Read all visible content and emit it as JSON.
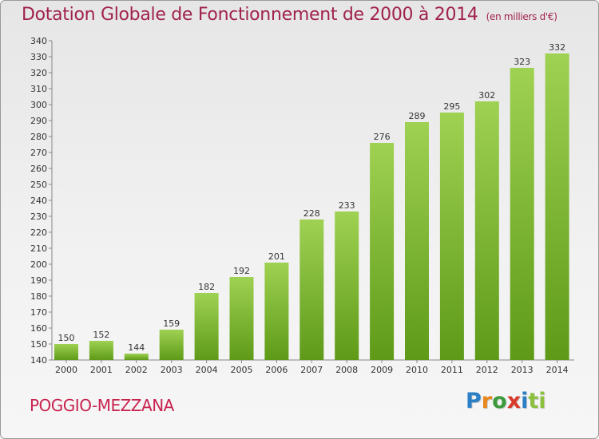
{
  "header": {
    "title": "Dotation Globale de Fonctionnement de 2000 à 2014",
    "unit": "(en milliers d'€)"
  },
  "footer": {
    "commune": "POGGIO-MEZZANA",
    "logo_letters": [
      "P",
      "r",
      "o",
      "x",
      "i",
      "t",
      "i"
    ]
  },
  "colors": {
    "title": "#a0224e",
    "commune": "#c8234f",
    "bar_top": "#9fd152",
    "bar_bottom": "#5e9a18"
  },
  "chart_data": {
    "type": "bar",
    "title": "Dotation Globale de Fonctionnement de 2000 à 2014",
    "xlabel": "",
    "ylabel": "",
    "categories": [
      "2000",
      "2001",
      "2002",
      "2003",
      "2004",
      "2005",
      "2006",
      "2007",
      "2008",
      "2009",
      "2010",
      "2011",
      "2012",
      "2013",
      "2014"
    ],
    "values": [
      150,
      152,
      144,
      159,
      182,
      192,
      201,
      228,
      233,
      276,
      289,
      295,
      302,
      323,
      332
    ],
    "ylim": [
      140,
      340
    ],
    "yticks": [
      140,
      150,
      160,
      170,
      180,
      190,
      200,
      210,
      220,
      230,
      240,
      250,
      260,
      270,
      280,
      290,
      300,
      310,
      320,
      330,
      340
    ],
    "grid": false,
    "legend": "none"
  }
}
